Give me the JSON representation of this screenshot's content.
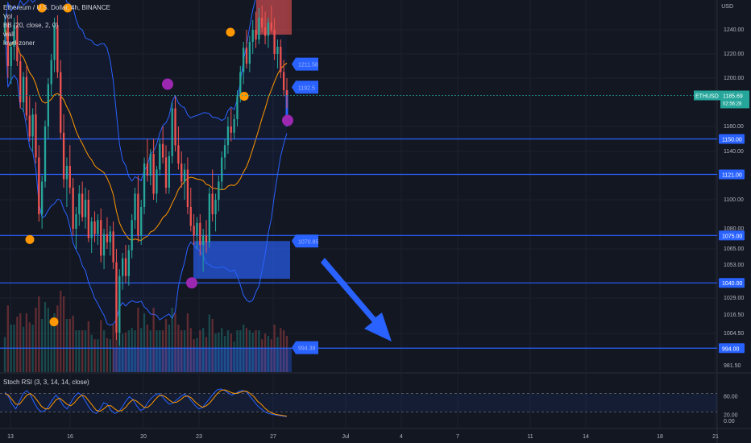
{
  "legend": {
    "symbol": "Ethereum / U.S. Dollar, 4h, BINANCE",
    "vol": "Vol",
    "bb": "BB (20, close, 2, 0)",
    "wall": "wall",
    "level": "level-zoner"
  },
  "currency": "USD",
  "price_tag": {
    "symbol": "ETHUSD",
    "price": "1185.69",
    "countdown": "02:56:28"
  },
  "colors": {
    "bg": "#131722",
    "up": "#26a69a",
    "down": "#ef5350",
    "level": "#2962ff",
    "zone": "#2962ff",
    "supply_zone": "#ef5350",
    "bb": "#2962ff",
    "basis": "#ff9800",
    "pivot_orange": "#ff9800",
    "pivot_purple": "#9c27b0",
    "rsi_k": "#2962ff",
    "rsi_d": "#ff9800"
  },
  "chart_data": {
    "type": "candlestick",
    "price_axis": [
      1240.0,
      1220.0,
      1200.0,
      1160.0,
      1140.0,
      1100.0,
      1080.0,
      1065.0,
      1053.0,
      1029.0,
      1016.5,
      1004.5,
      981.5
    ],
    "x_labels": [
      "13",
      "16",
      "20",
      "23",
      "27",
      "Jul",
      "4",
      "7",
      "11",
      "14",
      "18",
      "21"
    ],
    "horizontal_levels": [
      1150.0,
      1121.0,
      1075.0,
      1040.0,
      994.0
    ],
    "level_labels": [
      "1150.00",
      "1121.00",
      "1075.00",
      "1040.00",
      "994.00"
    ],
    "zone_labels": {
      "supply": "1211.58",
      "mid": "1192.5",
      "demand": "1070.85",
      "low": "994.38"
    },
    "candles": [
      [
        1238,
        1252,
        1228,
        1245
      ],
      [
        1245,
        1252,
        1200,
        1210
      ],
      [
        1210,
        1230,
        1195,
        1226
      ],
      [
        1226,
        1250,
        1215,
        1244
      ],
      [
        1244,
        1252,
        1210,
        1214
      ],
      [
        1214,
        1220,
        1175,
        1180
      ],
      [
        1180,
        1205,
        1172,
        1201
      ],
      [
        1201,
        1210,
        1165,
        1169
      ],
      [
        1169,
        1185,
        1148,
        1152
      ],
      [
        1152,
        1175,
        1140,
        1170
      ],
      [
        1170,
        1180,
        1130,
        1135
      ],
      [
        1135,
        1145,
        1085,
        1090
      ],
      [
        1090,
        1120,
        1080,
        1115
      ],
      [
        1115,
        1165,
        1110,
        1160
      ],
      [
        1160,
        1200,
        1150,
        1195
      ],
      [
        1195,
        1220,
        1185,
        1215
      ],
      [
        1215,
        1250,
        1205,
        1244
      ],
      [
        1244,
        1252,
        1200,
        1205
      ],
      [
        1205,
        1215,
        1150,
        1155
      ],
      [
        1155,
        1170,
        1110,
        1117
      ],
      [
        1117,
        1135,
        1095,
        1128
      ],
      [
        1128,
        1145,
        1105,
        1110
      ],
      [
        1110,
        1118,
        1075,
        1080
      ],
      [
        1080,
        1095,
        1065,
        1090
      ],
      [
        1090,
        1112,
        1082,
        1105
      ],
      [
        1105,
        1115,
        1085,
        1088
      ],
      [
        1088,
        1110,
        1080,
        1100
      ],
      [
        1100,
        1108,
        1070,
        1073
      ],
      [
        1073,
        1088,
        1062,
        1085
      ],
      [
        1085,
        1092,
        1070,
        1076
      ],
      [
        1076,
        1090,
        1068,
        1086
      ],
      [
        1086,
        1094,
        1055,
        1060
      ],
      [
        1060,
        1080,
        1050,
        1076
      ],
      [
        1076,
        1088,
        1065,
        1070
      ],
      [
        1070,
        1082,
        1060,
        1078
      ],
      [
        1078,
        1085,
        1050,
        1055
      ],
      [
        1055,
        1065,
        1000,
        1005
      ],
      [
        1005,
        1050,
        996,
        1045
      ],
      [
        1045,
        1062,
        1035,
        1058
      ],
      [
        1058,
        1068,
        1040,
        1045
      ],
      [
        1045,
        1068,
        1038,
        1064
      ],
      [
        1064,
        1090,
        1058,
        1086
      ],
      [
        1086,
        1110,
        1080,
        1105
      ],
      [
        1105,
        1120,
        1070,
        1075
      ],
      [
        1075,
        1100,
        1068,
        1095
      ],
      [
        1095,
        1135,
        1090,
        1130
      ],
      [
        1130,
        1150,
        1115,
        1120
      ],
      [
        1120,
        1142,
        1112,
        1138
      ],
      [
        1138,
        1150,
        1100,
        1105
      ],
      [
        1105,
        1128,
        1098,
        1125
      ],
      [
        1125,
        1150,
        1120,
        1146
      ],
      [
        1146,
        1160,
        1130,
        1135
      ],
      [
        1135,
        1145,
        1105,
        1110
      ],
      [
        1110,
        1140,
        1105,
        1136
      ],
      [
        1136,
        1180,
        1130,
        1175
      ],
      [
        1175,
        1185,
        1140,
        1145
      ],
      [
        1145,
        1160,
        1125,
        1130
      ],
      [
        1130,
        1140,
        1110,
        1115
      ],
      [
        1115,
        1130,
        1100,
        1125
      ],
      [
        1125,
        1135,
        1090,
        1095
      ],
      [
        1095,
        1110,
        1078,
        1082
      ],
      [
        1082,
        1090,
        1068,
        1075
      ],
      [
        1075,
        1088,
        1065,
        1084
      ],
      [
        1084,
        1090,
        1060,
        1068
      ],
      [
        1068,
        1080,
        1048,
        1075
      ],
      [
        1075,
        1086,
        1062,
        1070
      ],
      [
        1070,
        1110,
        1066,
        1105
      ],
      [
        1105,
        1125,
        1085,
        1090
      ],
      [
        1090,
        1105,
        1078,
        1100
      ],
      [
        1100,
        1120,
        1092,
        1115
      ],
      [
        1115,
        1140,
        1108,
        1135
      ],
      [
        1135,
        1150,
        1125,
        1145
      ],
      [
        1145,
        1168,
        1138,
        1160
      ],
      [
        1160,
        1175,
        1148,
        1155
      ],
      [
        1155,
        1170,
        1150,
        1166
      ],
      [
        1166,
        1190,
        1160,
        1185
      ],
      [
        1185,
        1210,
        1180,
        1205
      ],
      [
        1205,
        1230,
        1195,
        1225
      ],
      [
        1225,
        1240,
        1208,
        1212
      ],
      [
        1212,
        1235,
        1205,
        1230
      ],
      [
        1230,
        1248,
        1220,
        1240
      ],
      [
        1240,
        1255,
        1225,
        1232
      ],
      [
        1232,
        1258,
        1228,
        1250
      ],
      [
        1250,
        1260,
        1238,
        1242
      ],
      [
        1242,
        1255,
        1228,
        1235
      ],
      [
        1235,
        1250,
        1225,
        1246
      ],
      [
        1246,
        1260,
        1238,
        1240
      ],
      [
        1240,
        1250,
        1215,
        1220
      ],
      [
        1220,
        1232,
        1208,
        1226
      ],
      [
        1226,
        1232,
        1200,
        1205
      ],
      [
        1205,
        1215,
        1185,
        1190
      ],
      [
        1190,
        1200,
        1175,
        1186
      ]
    ]
  },
  "rsi_data": {
    "type": "line",
    "axis": [
      "80.00",
      "20.00",
      "0.00"
    ],
    "series": [
      {
        "name": "K",
        "values": [
          85,
          70,
          45,
          30,
          55,
          80,
          90,
          75,
          50,
          30,
          20,
          25,
          40,
          60,
          75,
          60,
          40,
          30,
          50,
          70,
          82,
          75,
          55,
          35,
          20,
          15,
          30,
          50,
          45,
          25,
          15,
          20,
          35,
          55,
          70,
          60,
          40,
          25,
          30,
          50,
          65,
          75,
          80,
          70,
          55,
          45,
          50,
          60,
          70,
          78,
          70,
          55,
          40,
          30,
          35,
          50,
          65,
          80,
          92,
          95,
          90,
          82,
          75,
          80,
          88,
          90,
          85,
          70,
          55,
          40,
          30,
          20,
          15,
          12,
          10,
          8,
          6,
          5
        ]
      },
      {
        "name": "D",
        "values": [
          80,
          75,
          60,
          45,
          45,
          60,
          75,
          80,
          70,
          55,
          38,
          30,
          30,
          45,
          60,
          65,
          55,
          45,
          40,
          50,
          65,
          75,
          70,
          55,
          40,
          25,
          22,
          30,
          40,
          40,
          30,
          22,
          25,
          35,
          50,
          60,
          55,
          45,
          35,
          35,
          45,
          60,
          72,
          75,
          68,
          58,
          50,
          52,
          60,
          70,
          72,
          65,
          52,
          42,
          35,
          40,
          50,
          65,
          80,
          90,
          92,
          88,
          82,
          80,
          83,
          87,
          88,
          80,
          70,
          55,
          45,
          32,
          22,
          16,
          12,
          10,
          8,
          6
        ]
      }
    ]
  }
}
